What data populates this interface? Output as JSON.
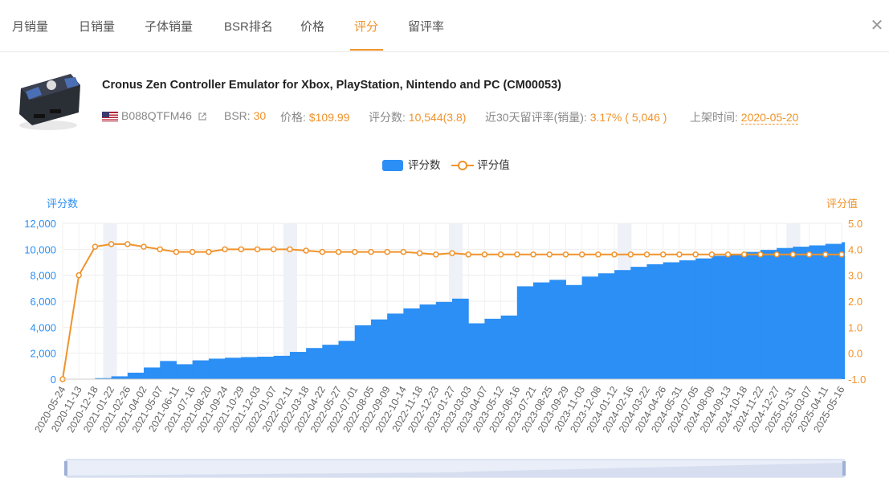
{
  "tabs": [
    {
      "label": "月销量"
    },
    {
      "label": "日销量"
    },
    {
      "label": "子体销量"
    },
    {
      "label": "BSR排名"
    },
    {
      "label": "价格"
    },
    {
      "label": "评分"
    },
    {
      "label": "留评率"
    }
  ],
  "active_tab": "评分",
  "product": {
    "title": "Cronus Zen Controller Emulator for Xbox, PlayStation, Nintendo and PC (CM00053)",
    "asin": "B088QTFM46",
    "bsr_label": "BSR:",
    "bsr_value": "30",
    "price_label": "价格:",
    "price_value": "$109.99",
    "ratings_label": "评分数:",
    "ratings_value": "10,544(3.8)",
    "review_rate_label": "近30天留评率(销量):",
    "review_rate_value": "3.17% ( 5,046 )",
    "listed_label": "上架时间:",
    "listed_value": "2020-05-20"
  },
  "colors": {
    "accent": "#f0932b",
    "bar": "#2b8ff5",
    "axis_left": "#2b8ff5",
    "axis_right": "#f0932b"
  },
  "chart_data": {
    "type": "bar",
    "title": "",
    "legend": [
      "评分数",
      "评分值"
    ],
    "ylabel": "评分数",
    "y2label": "评分值",
    "ylim": [
      0,
      12000
    ],
    "y2lim": [
      -1.0,
      5.0
    ],
    "yticks": [
      "0",
      "2,000",
      "4,000",
      "6,000",
      "8,000",
      "10,000",
      "12,000"
    ],
    "y2ticks": [
      "-1.0",
      "0.0",
      "1.0",
      "2.0",
      "3.0",
      "4.0",
      "5.0"
    ],
    "categories": [
      "2020-05-24",
      "2020-11-13",
      "2020-12-18",
      "2021-01-22",
      "2021-02-26",
      "2021-04-02",
      "2021-05-07",
      "2021-06-11",
      "2021-07-16",
      "2021-08-20",
      "2021-09-24",
      "2021-10-29",
      "2021-12-03",
      "2022-01-07",
      "2022-02-11",
      "2022-03-18",
      "2022-04-22",
      "2022-05-27",
      "2022-07-01",
      "2022-08-05",
      "2022-09-09",
      "2022-10-14",
      "2022-11-18",
      "2022-12-23",
      "2023-01-27",
      "2023-03-03",
      "2023-04-07",
      "2023-05-12",
      "2023-06-16",
      "2023-07-21",
      "2023-08-25",
      "2023-09-29",
      "2023-11-03",
      "2023-12-08",
      "2024-01-12",
      "2024-02-16",
      "2024-03-22",
      "2024-04-26",
      "2024-05-31",
      "2024-07-05",
      "2024-08-09",
      "2024-09-13",
      "2024-10-18",
      "2024-11-22",
      "2024-12-27",
      "2025-01-31",
      "2025-03-07",
      "2025-04-11",
      "2025-05-16"
    ],
    "series": [
      {
        "name": "评分数",
        "type": "bar",
        "values": [
          0,
          30,
          80,
          220,
          500,
          900,
          1400,
          1150,
          1450,
          1580,
          1650,
          1700,
          1730,
          1800,
          2100,
          2400,
          2650,
          2950,
          4150,
          4600,
          5050,
          5450,
          5750,
          5950,
          6200,
          4300,
          4650,
          4900,
          7150,
          7450,
          7650,
          7250,
          7900,
          8150,
          8400,
          8650,
          8850,
          9000,
          9150,
          9300,
          9500,
          9650,
          9800,
          9950,
          10100,
          10200,
          10300,
          10420,
          10544
        ]
      },
      {
        "name": "评分值",
        "type": "line",
        "values": [
          -1.0,
          3.0,
          4.1,
          4.2,
          4.2,
          4.1,
          4.0,
          3.9,
          3.9,
          3.9,
          4.0,
          4.0,
          4.0,
          4.0,
          4.0,
          3.95,
          3.9,
          3.9,
          3.9,
          3.9,
          3.9,
          3.9,
          3.85,
          3.8,
          3.85,
          3.8,
          3.8,
          3.8,
          3.8,
          3.8,
          3.8,
          3.8,
          3.8,
          3.8,
          3.8,
          3.8,
          3.8,
          3.8,
          3.8,
          3.8,
          3.8,
          3.8,
          3.8,
          3.8,
          3.8,
          3.8,
          3.8,
          3.8,
          3.8
        ]
      }
    ]
  }
}
